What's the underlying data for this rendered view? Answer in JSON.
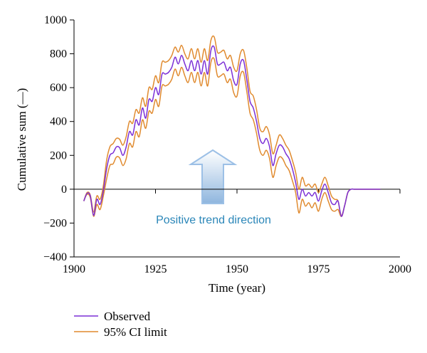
{
  "chart_data": {
    "type": "line",
    "xlabel": "Time (year)",
    "ylabel": "Cumulative sum (—)",
    "xlim": [
      1900,
      2000
    ],
    "ylim": [
      -400,
      1000
    ],
    "xticks": [
      "1900",
      "1925",
      "1950",
      "1975",
      "2000"
    ],
    "yticks": [
      "−400",
      "−200",
      "0",
      "200",
      "400",
      "600",
      "800",
      "1000"
    ],
    "grid": false,
    "legend_position": "bottom-left",
    "annotation": {
      "text": "Positive trend direction",
      "color": "#2a86b8"
    },
    "x": [
      1903,
      1904,
      1905,
      1906,
      1907,
      1908,
      1909,
      1910,
      1911,
      1912,
      1913,
      1914,
      1915,
      1916,
      1917,
      1918,
      1919,
      1920,
      1921,
      1922,
      1923,
      1924,
      1925,
      1926,
      1927,
      1928,
      1929,
      1930,
      1931,
      1932,
      1933,
      1934,
      1935,
      1936,
      1937,
      1938,
      1939,
      1940,
      1941,
      1942,
      1943,
      1944,
      1945,
      1946,
      1947,
      1948,
      1949,
      1950,
      1951,
      1952,
      1953,
      1954,
      1955,
      1956,
      1957,
      1958,
      1959,
      1960,
      1961,
      1962,
      1963,
      1964,
      1965,
      1966,
      1967,
      1968,
      1969,
      1970,
      1971,
      1972,
      1973,
      1974,
      1975,
      1976,
      1977,
      1978,
      1979,
      1980,
      1981,
      1982,
      1983,
      1984,
      1985,
      1986,
      1987,
      1988,
      1989,
      1990,
      1991,
      1992,
      1993,
      1994
    ],
    "series": [
      {
        "name": "Observed",
        "color": "#7b2fd6",
        "values": [
          -70,
          -25,
          -40,
          -155,
          -60,
          -90,
          -10,
          120,
          200,
          215,
          250,
          245,
          200,
          250,
          340,
          320,
          410,
          380,
          480,
          420,
          530,
          520,
          600,
          560,
          680,
          680,
          690,
          720,
          780,
          740,
          790,
          740,
          700,
          760,
          700,
          760,
          680,
          760,
          680,
          820,
          840,
          740,
          740,
          750,
          700,
          720,
          640,
          620,
          740,
          760,
          650,
          520,
          480,
          400,
          300,
          270,
          300,
          250,
          140,
          210,
          260,
          250,
          210,
          180,
          120,
          40,
          -60,
          0,
          -40,
          -20,
          -40,
          -20,
          -70,
          -10,
          30,
          -20,
          -80,
          -90,
          -70,
          -160,
          -100,
          -20,
          0,
          0,
          0,
          0,
          0,
          0,
          0,
          0,
          0,
          0
        ]
      },
      {
        "name": "95% CI limit",
        "color": "#e08a2e",
        "values": [
          -70,
          -20,
          -35,
          -135,
          -40,
          -60,
          20,
          170,
          250,
          270,
          300,
          295,
          260,
          310,
          400,
          390,
          470,
          450,
          540,
          490,
          600,
          590,
          670,
          630,
          750,
          750,
          760,
          790,
          840,
          810,
          850,
          800,
          770,
          830,
          770,
          830,
          750,
          830,
          760,
          880,
          900,
          810,
          810,
          820,
          770,
          790,
          720,
          700,
          800,
          820,
          720,
          580,
          550,
          470,
          360,
          340,
          370,
          320,
          210,
          260,
          320,
          300,
          260,
          230,
          170,
          100,
          0,
          70,
          20,
          30,
          10,
          30,
          -20,
          30,
          70,
          20,
          -40,
          -60,
          -70,
          -160,
          -100,
          -20,
          0,
          0,
          0,
          0,
          0,
          0,
          0,
          0,
          0,
          0
        ]
      },
      {
        "name": "",
        "color": "#e08a2e",
        "values": [
          -70,
          -30,
          -50,
          -160,
          -90,
          -120,
          -40,
          60,
          140,
          150,
          190,
          185,
          140,
          180,
          270,
          250,
          340,
          310,
          410,
          360,
          460,
          450,
          530,
          490,
          610,
          610,
          620,
          650,
          710,
          670,
          720,
          670,
          630,
          690,
          630,
          690,
          610,
          690,
          610,
          750,
          770,
          670,
          670,
          680,
          630,
          650,
          570,
          550,
          670,
          690,
          580,
          450,
          410,
          330,
          230,
          200,
          230,
          180,
          70,
          140,
          190,
          180,
          140,
          110,
          50,
          -20,
          -140,
          -60,
          -100,
          -80,
          -110,
          -80,
          -130,
          -60,
          -20,
          -70,
          -120,
          -130,
          -120,
          -160,
          -100,
          -20,
          0,
          0,
          0,
          0,
          0,
          0,
          0,
          0,
          0,
          0
        ]
      }
    ]
  },
  "legend": {
    "items": [
      {
        "label": "Observed",
        "color": "#7b2fd6"
      },
      {
        "label": "95% CI limit",
        "color": "#e08a2e"
      }
    ]
  },
  "colors": {
    "arrow_fill_top": "#ffffff",
    "arrow_fill_bottom": "#8fb6de",
    "arrow_stroke": "#9cc0e6",
    "axis": "#000000"
  }
}
